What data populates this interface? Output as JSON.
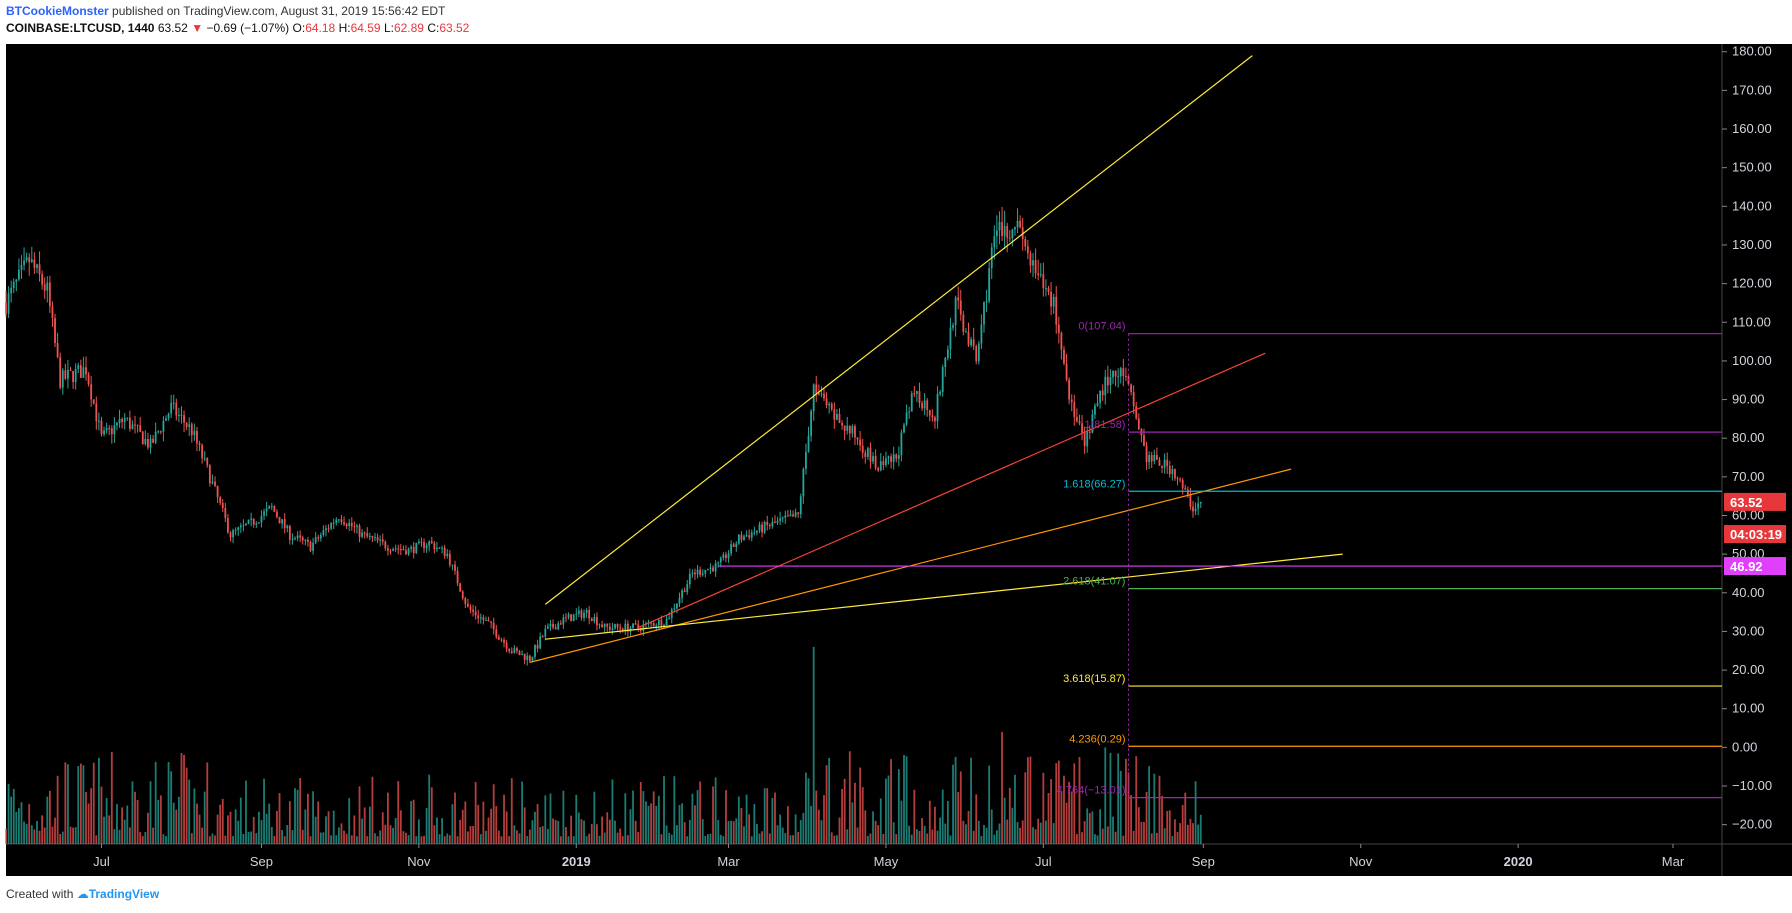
{
  "header": {
    "author": "BTCookieMonster",
    "published_text": "published on TradingView.com, August 31, 2019 15:56:42 EDT"
  },
  "symbol_bar": {
    "symbol": "COINBASE:LTCUSD, 1440",
    "last": "63.52",
    "change": "−0.69 (−1.07%)",
    "open_label": "O:",
    "open": "64.18",
    "high_label": "H:",
    "high": "64.59",
    "low_label": "L:",
    "low": "62.89",
    "close_label": "C:",
    "close": "63.52",
    "colors": {
      "down": "#e8373b"
    }
  },
  "chart_data": {
    "type": "candlestick",
    "colors": {
      "background": "#000000",
      "up": "#26a69a",
      "down": "#ef5350",
      "axis_text": "#d1d4dc"
    },
    "x_ticks": [
      {
        "date": "2018-07-01",
        "label": "Jul"
      },
      {
        "date": "2018-09-01",
        "label": "Sep"
      },
      {
        "date": "2018-11-01",
        "label": "Nov"
      },
      {
        "date": "2019-01-01",
        "label": "2019",
        "bold": true
      },
      {
        "date": "2019-03-01",
        "label": "Mar"
      },
      {
        "date": "2019-05-01",
        "label": "May"
      },
      {
        "date": "2019-07-01",
        "label": "Jul"
      },
      {
        "date": "2019-09-01",
        "label": "Sep"
      },
      {
        "date": "2019-11-01",
        "label": "Nov"
      },
      {
        "date": "2020-01-01",
        "label": "2020",
        "bold": true
      },
      {
        "date": "2020-03-01",
        "label": "Mar"
      }
    ],
    "x_range": [
      "2018-05-25",
      "2020-03-20"
    ],
    "y_range": [
      -25,
      182
    ],
    "y_ticks": [
      "180.00",
      "170.00",
      "160.00",
      "150.00",
      "140.00",
      "130.00",
      "120.00",
      "110.00",
      "100.00",
      "90.00",
      "80.00",
      "70.00",
      "60.00",
      "50.00",
      "40.00",
      "30.00",
      "20.00",
      "10.00",
      "0.00",
      "−10.00",
      "−20.00"
    ],
    "y_tick_values": [
      180,
      170,
      160,
      150,
      140,
      130,
      120,
      110,
      100,
      90,
      80,
      70,
      60,
      50,
      40,
      30,
      20,
      10,
      0,
      -10,
      -20
    ],
    "price_path": [
      [
        "2018-05-25",
        115
      ],
      [
        "2018-06-03",
        126
      ],
      [
        "2018-06-10",
        118
      ],
      [
        "2018-06-15",
        95
      ],
      [
        "2018-06-25",
        98
      ],
      [
        "2018-07-01",
        80
      ],
      [
        "2018-07-10",
        85
      ],
      [
        "2018-07-20",
        78
      ],
      [
        "2018-07-28",
        88
      ],
      [
        "2018-08-05",
        82
      ],
      [
        "2018-08-12",
        70
      ],
      [
        "2018-08-20",
        55
      ],
      [
        "2018-08-28",
        58
      ],
      [
        "2018-09-05",
        62
      ],
      [
        "2018-09-12",
        55
      ],
      [
        "2018-09-20",
        52
      ],
      [
        "2018-10-01",
        60
      ],
      [
        "2018-10-10",
        55
      ],
      [
        "2018-10-20",
        52
      ],
      [
        "2018-10-28",
        51
      ],
      [
        "2018-11-05",
        53
      ],
      [
        "2018-11-12",
        50
      ],
      [
        "2018-11-20",
        36
      ],
      [
        "2018-11-28",
        32
      ],
      [
        "2018-12-07",
        25
      ],
      [
        "2018-12-14",
        23
      ],
      [
        "2018-12-20",
        30
      ],
      [
        "2018-12-27",
        33
      ],
      [
        "2019-01-05",
        35
      ],
      [
        "2019-01-12",
        31
      ],
      [
        "2019-01-25",
        31
      ],
      [
        "2019-02-05",
        33
      ],
      [
        "2019-02-15",
        45
      ],
      [
        "2019-02-25",
        47
      ],
      [
        "2019-03-05",
        54
      ],
      [
        "2019-03-15",
        57
      ],
      [
        "2019-03-28",
        60
      ],
      [
        "2019-04-03",
        93
      ],
      [
        "2019-04-10",
        86
      ],
      [
        "2019-04-20",
        80
      ],
      [
        "2019-04-28",
        72
      ],
      [
        "2019-05-05",
        75
      ],
      [
        "2019-05-12",
        92
      ],
      [
        "2019-05-20",
        86
      ],
      [
        "2019-05-28",
        115
      ],
      [
        "2019-06-05",
        100
      ],
      [
        "2019-06-12",
        132
      ],
      [
        "2019-06-20",
        136
      ],
      [
        "2019-06-28",
        122
      ],
      [
        "2019-07-05",
        115
      ],
      [
        "2019-07-12",
        88
      ],
      [
        "2019-07-17",
        78
      ],
      [
        "2019-07-25",
        95
      ],
      [
        "2019-08-01",
        97
      ],
      [
        "2019-08-05",
        88
      ],
      [
        "2019-08-10",
        75
      ],
      [
        "2019-08-20",
        72
      ],
      [
        "2019-08-28",
        62
      ],
      [
        "2019-08-31",
        63.5
      ]
    ],
    "volume_spikes": [
      {
        "date": "2019-04-03",
        "value": 26
      },
      {
        "date": "2019-06-15",
        "value": 4
      },
      {
        "date": "2019-07-25",
        "value": 0
      }
    ],
    "fib_levels": [
      {
        "ratio": "0",
        "value": 107.04,
        "label": "0(107.04)",
        "color": "#9c27b0"
      },
      {
        "ratio": "1",
        "value": 81.58,
        "label": "1(81.58)",
        "color": "#9c27b0"
      },
      {
        "ratio": "1.618",
        "value": 66.27,
        "label": "1.618(66.27)",
        "color": "#00bcd4"
      },
      {
        "ratio": "2.618",
        "value": 41.07,
        "label": "2.618(41.07)",
        "color": "#4caf50"
      },
      {
        "ratio": "3.618",
        "value": 15.87,
        "label": "3.618(15.87)",
        "color": "#ffeb3b"
      },
      {
        "ratio": "4.236",
        "value": 0.29,
        "label": "4.236(0.29)",
        "color": "#ff9800"
      },
      {
        "ratio": "4.764",
        "value": -13.01,
        "label": "4.764(−13.01)",
        "color": "#9c27b0"
      }
    ],
    "fib_start_date": "2019-08-03",
    "horizontal_line": {
      "value": 46.92,
      "start_date": "2019-02-25",
      "color": "#e040fb"
    },
    "trend_lines": [
      {
        "from": [
          "2018-12-20",
          37
        ],
        "to": [
          "2019-09-20",
          179
        ],
        "color": "#ffeb3b"
      },
      {
        "from": [
          "2019-01-25",
          31
        ],
        "to": [
          "2019-09-25",
          102
        ],
        "color": "#f44336"
      },
      {
        "from": [
          "2018-12-14",
          22
        ],
        "to": [
          "2019-10-05",
          72
        ],
        "color": "#ff9800"
      },
      {
        "from": [
          "2018-12-20",
          28
        ],
        "to": [
          "2019-10-25",
          50
        ],
        "color": "#ffeb3b"
      }
    ],
    "price_labels": [
      {
        "value": 63.52,
        "text": "63.52",
        "bg": "#e8373b",
        "fg": "#ffffff"
      },
      {
        "value": 55.2,
        "text": "04:03:19",
        "bg": "#e8373b",
        "fg": "#ffffff"
      },
      {
        "value": 46.92,
        "text": "46.92",
        "bg": "#e040fb",
        "fg": "#ffffff"
      }
    ]
  },
  "footer": {
    "created_with": "Created with",
    "brand": "TradingView"
  }
}
